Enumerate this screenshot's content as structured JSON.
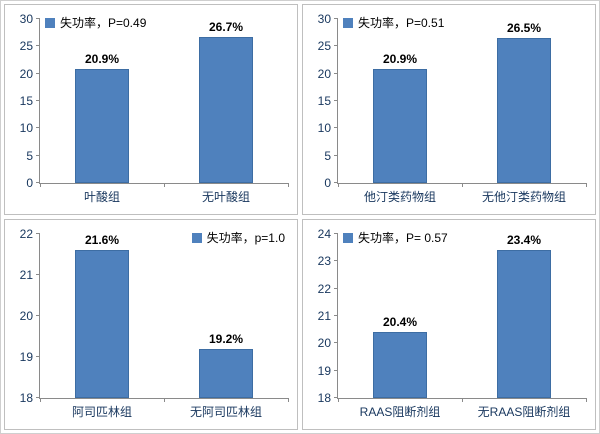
{
  "colors": {
    "bar": "#4f81bd",
    "axis_text": "#17365d",
    "panel_border": "#bfbfbf"
  },
  "chart_data": [
    {
      "type": "bar",
      "title": "",
      "legend": "失功率，P=0.49",
      "legend_position": "top-left",
      "categories": [
        "叶酸组",
        "无叶酸组"
      ],
      "values": [
        20.9,
        26.7
      ],
      "data_labels": [
        "20.9%",
        "26.7%"
      ],
      "xlabel": "",
      "ylabel": "",
      "ylim": [
        0,
        30
      ],
      "ytick_step": 5,
      "grid": false,
      "bar_color": "#4f81bd"
    },
    {
      "type": "bar",
      "title": "",
      "legend": "失功率，P=0.51",
      "legend_position": "top-left",
      "categories": [
        "他汀类药物组",
        "无他汀类药物组"
      ],
      "values": [
        20.9,
        26.5
      ],
      "data_labels": [
        "20.9%",
        "26.5%"
      ],
      "xlabel": "",
      "ylabel": "",
      "ylim": [
        0,
        30
      ],
      "ytick_step": 5,
      "grid": false,
      "bar_color": "#4f81bd"
    },
    {
      "type": "bar",
      "title": "",
      "legend": "失功率，p=1.0",
      "legend_position": "top-right",
      "categories": [
        "阿司匹林组",
        "无阿司匹林组"
      ],
      "values": [
        21.6,
        19.2
      ],
      "data_labels": [
        "21.6%",
        "19.2%"
      ],
      "xlabel": "",
      "ylabel": "",
      "ylim": [
        18,
        22
      ],
      "ytick_step": 1,
      "grid": false,
      "bar_color": "#4f81bd"
    },
    {
      "type": "bar",
      "title": "",
      "legend": "失功率，P= 0.57",
      "legend_position": "top-left",
      "categories": [
        "RAAS阻断剂组",
        "无RAAS阻断剂组"
      ],
      "values": [
        20.4,
        23.4
      ],
      "data_labels": [
        "20.4%",
        "23.4%"
      ],
      "xlabel": "",
      "ylabel": "",
      "ylim": [
        18,
        24
      ],
      "ytick_step": 1,
      "grid": false,
      "bar_color": "#4f81bd"
    }
  ]
}
